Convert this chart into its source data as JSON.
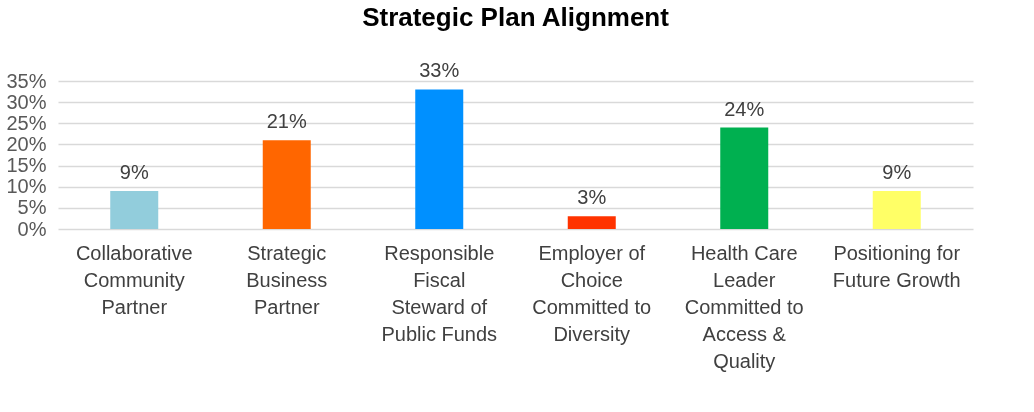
{
  "chart_data": {
    "type": "bar",
    "title": "Strategic Plan Alignment",
    "categories": [
      "Collaborative Community Partner",
      "Strategic Business Partner",
      "Responsible Fiscal Steward of Public Funds",
      "Employer of Choice Committed to Diversity",
      "Health Care Leader Committed to Access & Quality",
      "Positioning for Future Growth"
    ],
    "values": [
      9,
      21,
      33,
      3,
      24,
      9
    ],
    "colors": [
      "#92cddc",
      "#ff6600",
      "#0090ff",
      "#ff3300",
      "#00b050",
      "#ffff66"
    ],
    "value_labels": [
      "9%",
      "21%",
      "33%",
      "3%",
      "24%",
      "9%"
    ],
    "ylim": [
      0,
      35
    ],
    "yticks": [
      {
        "value": 0,
        "label": "0%"
      },
      {
        "value": 5,
        "label": "5%"
      },
      {
        "value": 10,
        "label": "10%"
      },
      {
        "value": 15,
        "label": "15%"
      },
      {
        "value": 20,
        "label": "20%"
      },
      {
        "value": 25,
        "label": "25%"
      },
      {
        "value": 30,
        "label": "30%"
      },
      {
        "value": 35,
        "label": "35%"
      }
    ],
    "grid": "y"
  }
}
